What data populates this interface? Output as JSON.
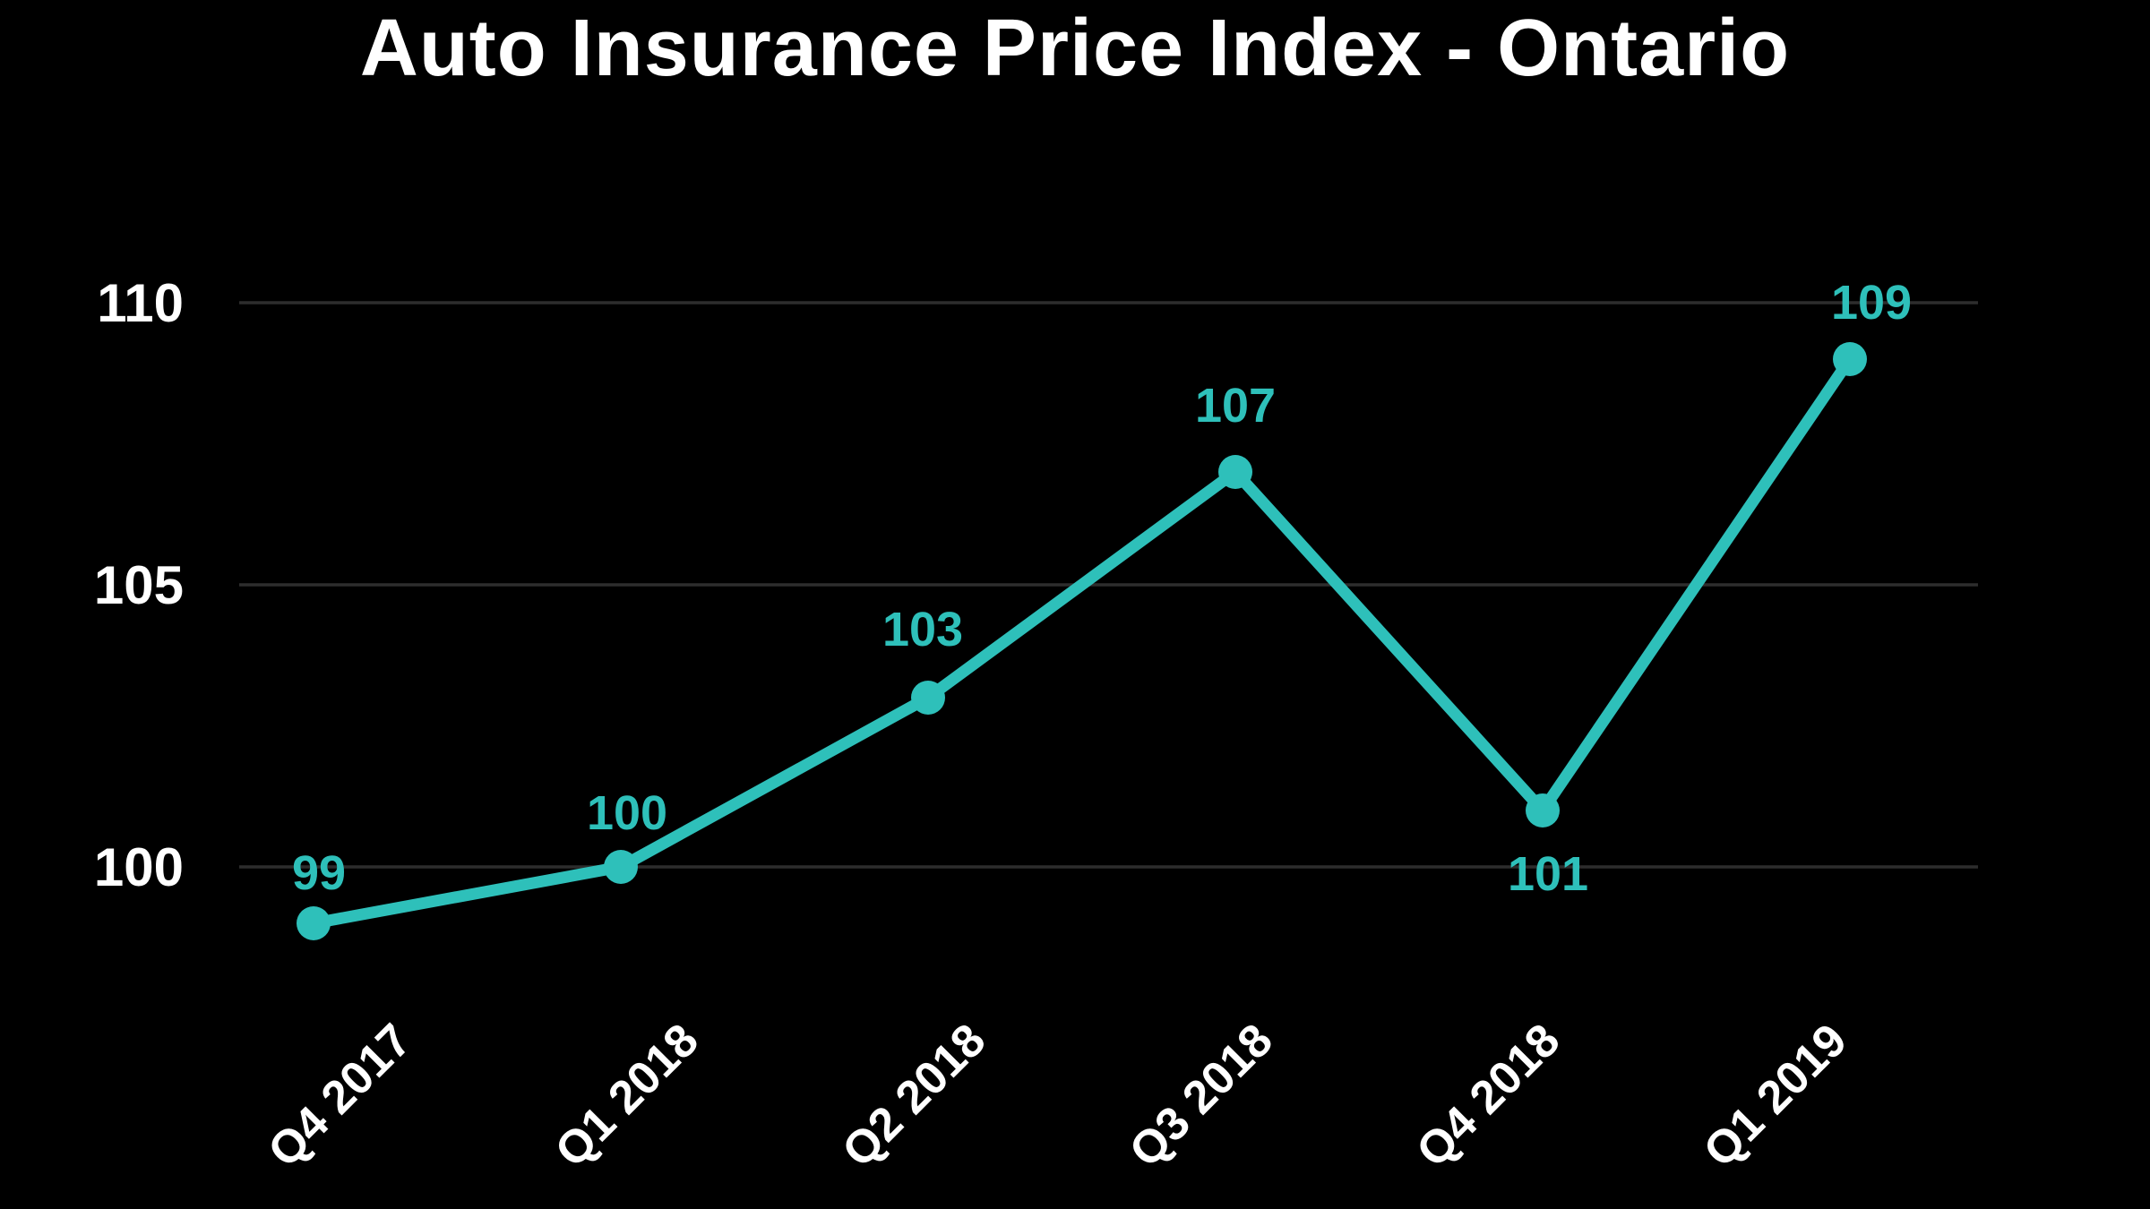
{
  "chart_data": {
    "type": "line",
    "title": "Auto Insurance Price Index - Ontario",
    "categories": [
      "Q4 2017",
      "Q1 2018",
      "Q2 2018",
      "Q3 2018",
      "Q4 2018",
      "Q1 2019"
    ],
    "values": [
      99,
      100,
      103,
      107,
      101,
      109
    ],
    "series_name": "Auto Insurance Price Index",
    "point_labels": [
      "99",
      "100",
      "103",
      "107",
      "101",
      "109"
    ],
    "point_label_position": [
      "above",
      "above",
      "above",
      "above",
      "below",
      "above"
    ],
    "yticks": [
      100,
      105,
      110
    ],
    "ytick_labels": [
      "100",
      "105",
      "110"
    ],
    "ylim": [
      98.5,
      111.5
    ],
    "xlabel": "",
    "ylabel": "",
    "grid": true,
    "legend": false,
    "x_tick_rotation_deg": -45,
    "colors": {
      "background": "#000000",
      "line": "#2ec0ba",
      "point": "#2ec0ba",
      "point_label": "#2ec0ba",
      "axis_text": "#ffffff",
      "title_text": "#ffffff",
      "gridline": "#2d2d2d"
    }
  }
}
